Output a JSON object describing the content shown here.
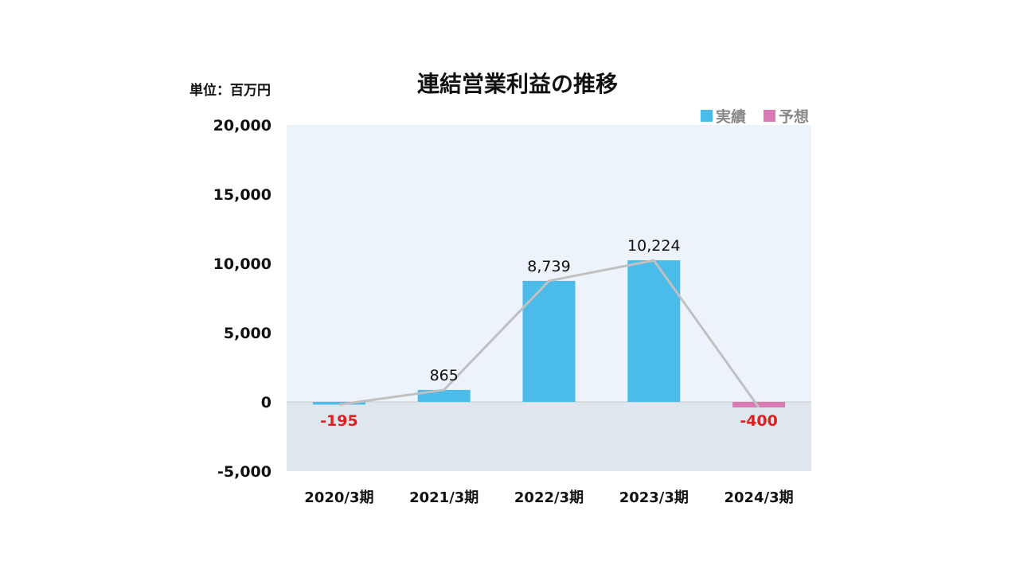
{
  "chart_data": {
    "type": "bar",
    "title": "連結営業利益の推移",
    "unit_label": "単位：百万円",
    "categories": [
      "2020/3期",
      "2021/3期",
      "2022/3期",
      "2023/3期",
      "2024/3期"
    ],
    "values": [
      -195,
      865,
      8739,
      10224,
      -400
    ],
    "value_labels": [
      "-195",
      "865",
      "8,739",
      "10,224",
      "-400"
    ],
    "kinds": [
      "actual",
      "actual",
      "actual",
      "actual",
      "forecast"
    ],
    "series": [
      {
        "name": "実績",
        "color": "#4bbbe9"
      },
      {
        "name": "予想",
        "color": "#d97ab4"
      }
    ],
    "trend_line": {
      "values": [
        -195,
        865,
        8739,
        10224,
        -400
      ],
      "color": "#c0c0c0"
    },
    "ylim": [
      -5000,
      20000
    ],
    "yticks": [
      20000,
      15000,
      10000,
      5000,
      0,
      -5000
    ],
    "ytick_labels": [
      "20,000",
      "15,000",
      "10,000",
      "5,000",
      "0",
      "-5,000"
    ],
    "positive_region_color": "#edf3fa",
    "negative_region_color": "#dfe6ee",
    "negative_label_color": "#e02020",
    "legend_position": "top-right",
    "grid": false
  }
}
